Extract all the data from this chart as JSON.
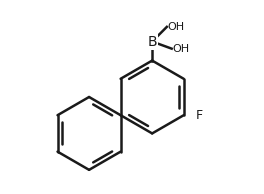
{
  "background_color": "#ffffff",
  "line_color": "#1a1a1a",
  "line_width": 1.8,
  "font_size_label": 9,
  "label_B": "B",
  "label_OH1": "OH",
  "label_OH2": "OH",
  "label_F": "F",
  "figsize": [
    2.64,
    1.94
  ],
  "dpi": 100
}
